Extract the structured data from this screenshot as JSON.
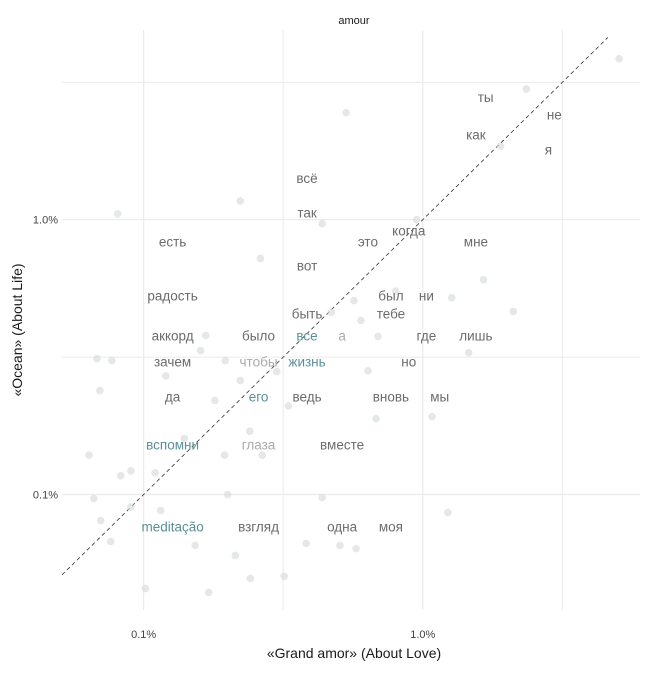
{
  "chart_data": {
    "type": "scatter",
    "title": "amour",
    "xlabel": "«Grand amor» (About Love)",
    "ylabel": "«Ocean» (About Life)",
    "x_scale": "log",
    "y_scale": "log",
    "xlim": [
      0.051,
      6.0
    ],
    "ylim": [
      0.038,
      4.9
    ],
    "x_major_ticks": [
      {
        "value": 0.1,
        "label": "0.1%"
      },
      {
        "value": 1.0,
        "label": "1.0%"
      }
    ],
    "y_major_ticks": [
      {
        "value": 0.1,
        "label": "0.1%"
      },
      {
        "value": 1.0,
        "label": "1.0%"
      }
    ],
    "x_minor_ticks": [
      0.316,
      3.16
    ],
    "y_minor_ticks": [
      0.316,
      3.16
    ],
    "grid": true,
    "reference_line": "y = x (dashed)",
    "colors": {
      "text": "#6b6b6b",
      "teal": "#5b9096",
      "light": "#aaaaaa",
      "point": "#d6dcda",
      "grid": "#ebebeb",
      "line": "#333333"
    },
    "labels": [
      {
        "word": "ты",
        "x": 1.68,
        "y": 2.8,
        "tone": "text"
      },
      {
        "word": "не",
        "x": 2.96,
        "y": 2.41,
        "tone": "text"
      },
      {
        "word": "как",
        "x": 1.55,
        "y": 2.04,
        "tone": "text"
      },
      {
        "word": "я",
        "x": 2.82,
        "y": 1.8,
        "tone": "text"
      },
      {
        "word": "всё",
        "x": 0.385,
        "y": 1.42,
        "tone": "text"
      },
      {
        "word": "так",
        "x": 0.385,
        "y": 1.06,
        "tone": "text"
      },
      {
        "word": "когда",
        "x": 0.891,
        "y": 0.912,
        "tone": "text"
      },
      {
        "word": "это",
        "x": 0.636,
        "y": 0.832,
        "tone": "text"
      },
      {
        "word": "мне",
        "x": 1.55,
        "y": 0.832,
        "tone": "text"
      },
      {
        "word": "есть",
        "x": 0.127,
        "y": 0.832,
        "tone": "text"
      },
      {
        "word": "вот",
        "x": 0.385,
        "y": 0.681,
        "tone": "text"
      },
      {
        "word": "радость",
        "x": 0.127,
        "y": 0.529,
        "tone": "text"
      },
      {
        "word": "был",
        "x": 0.769,
        "y": 0.529,
        "tone": "text"
      },
      {
        "word": "ни",
        "x": 1.03,
        "y": 0.529,
        "tone": "text"
      },
      {
        "word": "быть",
        "x": 0.385,
        "y": 0.455,
        "tone": "text"
      },
      {
        "word": "тебе",
        "x": 0.769,
        "y": 0.455,
        "tone": "text"
      },
      {
        "word": "аккорд",
        "x": 0.127,
        "y": 0.379,
        "tone": "text"
      },
      {
        "word": "было",
        "x": 0.258,
        "y": 0.379,
        "tone": "text"
      },
      {
        "word": "все",
        "x": 0.385,
        "y": 0.379,
        "tone": "teal"
      },
      {
        "word": "а",
        "x": 0.514,
        "y": 0.379,
        "tone": "light"
      },
      {
        "word": "где",
        "x": 1.03,
        "y": 0.379,
        "tone": "text"
      },
      {
        "word": "лишь",
        "x": 1.55,
        "y": 0.379,
        "tone": "text"
      },
      {
        "word": "зачем",
        "x": 0.127,
        "y": 0.305,
        "tone": "text"
      },
      {
        "word": "чтобы",
        "x": 0.258,
        "y": 0.305,
        "tone": "light"
      },
      {
        "word": "жизнь",
        "x": 0.385,
        "y": 0.305,
        "tone": "teal"
      },
      {
        "word": "но",
        "x": 0.891,
        "y": 0.305,
        "tone": "text"
      },
      {
        "word": "да",
        "x": 0.127,
        "y": 0.227,
        "tone": "text"
      },
      {
        "word": "его",
        "x": 0.258,
        "y": 0.227,
        "tone": "teal"
      },
      {
        "word": "ведь",
        "x": 0.385,
        "y": 0.227,
        "tone": "text"
      },
      {
        "word": "вновь",
        "x": 0.769,
        "y": 0.227,
        "tone": "text"
      },
      {
        "word": "мы",
        "x": 1.15,
        "y": 0.227,
        "tone": "text"
      },
      {
        "word": "вспомни",
        "x": 0.127,
        "y": 0.152,
        "tone": "teal"
      },
      {
        "word": "глаза",
        "x": 0.258,
        "y": 0.152,
        "tone": "light"
      },
      {
        "word": "вместе",
        "x": 0.514,
        "y": 0.152,
        "tone": "text"
      },
      {
        "word": "meditação",
        "x": 0.127,
        "y": 0.0765,
        "tone": "teal"
      },
      {
        "word": "взгляд",
        "x": 0.258,
        "y": 0.0765,
        "tone": "text"
      },
      {
        "word": "одна",
        "x": 0.514,
        "y": 0.0765,
        "tone": "text"
      },
      {
        "word": "моя",
        "x": 0.769,
        "y": 0.0765,
        "tone": "text"
      }
    ],
    "points": [
      [
        5.05,
        3.85
      ],
      [
        2.35,
        2.99
      ],
      [
        0.531,
        2.45
      ],
      [
        0.222,
        1.17
      ],
      [
        0.0807,
        1.05
      ],
      [
        0.436,
        0.967
      ],
      [
        0.262,
        0.722
      ],
      [
        1.65,
        0.605
      ],
      [
        1.27,
        0.52
      ],
      [
        2.11,
        0.463
      ],
      [
        1.46,
        0.328
      ],
      [
        1.08,
        0.192
      ],
      [
        1.23,
        0.086
      ],
      [
        0.0697,
        0.239
      ],
      [
        0.068,
        0.312
      ],
      [
        0.0769,
        0.307
      ],
      [
        0.0637,
        0.139
      ],
      [
        0.0663,
        0.0967
      ],
      [
        0.0762,
        0.0675
      ],
      [
        0.1016,
        0.0455
      ],
      [
        0.171,
        0.044
      ],
      [
        0.241,
        0.0495
      ],
      [
        0.319,
        0.0504
      ],
      [
        0.382,
        0.0664
      ],
      [
        0.505,
        0.0653
      ],
      [
        0.577,
        0.0636
      ],
      [
        0.436,
        0.0975
      ],
      [
        0.266,
        0.139
      ],
      [
        0.195,
        0.139
      ],
      [
        0.16,
        0.334
      ],
      [
        0.167,
        0.379
      ],
      [
        0.196,
        0.307
      ],
      [
        0.222,
        0.26
      ],
      [
        0.68,
        0.189
      ],
      [
        0.636,
        0.282
      ],
      [
        0.567,
        0.508
      ],
      [
        0.691,
        0.376
      ],
      [
        0.0828,
        0.117
      ],
      [
        0.09,
        0.122
      ],
      [
        0.0702,
        0.0804
      ],
      [
        0.115,
        0.0875
      ],
      [
        0.153,
        0.0653
      ],
      [
        0.213,
        0.06
      ],
      [
        0.95,
        1.0
      ],
      [
        1.9,
        1.85
      ],
      [
        0.47,
        0.46
      ],
      [
        0.3,
        0.28
      ],
      [
        0.14,
        0.16
      ],
      [
        0.11,
        0.12
      ],
      [
        0.09,
        0.09
      ],
      [
        0.24,
        0.17
      ],
      [
        0.2,
        0.1
      ],
      [
        0.33,
        0.21
      ],
      [
        0.18,
        0.22
      ],
      [
        0.12,
        0.27
      ],
      [
        0.6,
        0.43
      ],
      [
        0.8,
        0.55
      ]
    ]
  }
}
